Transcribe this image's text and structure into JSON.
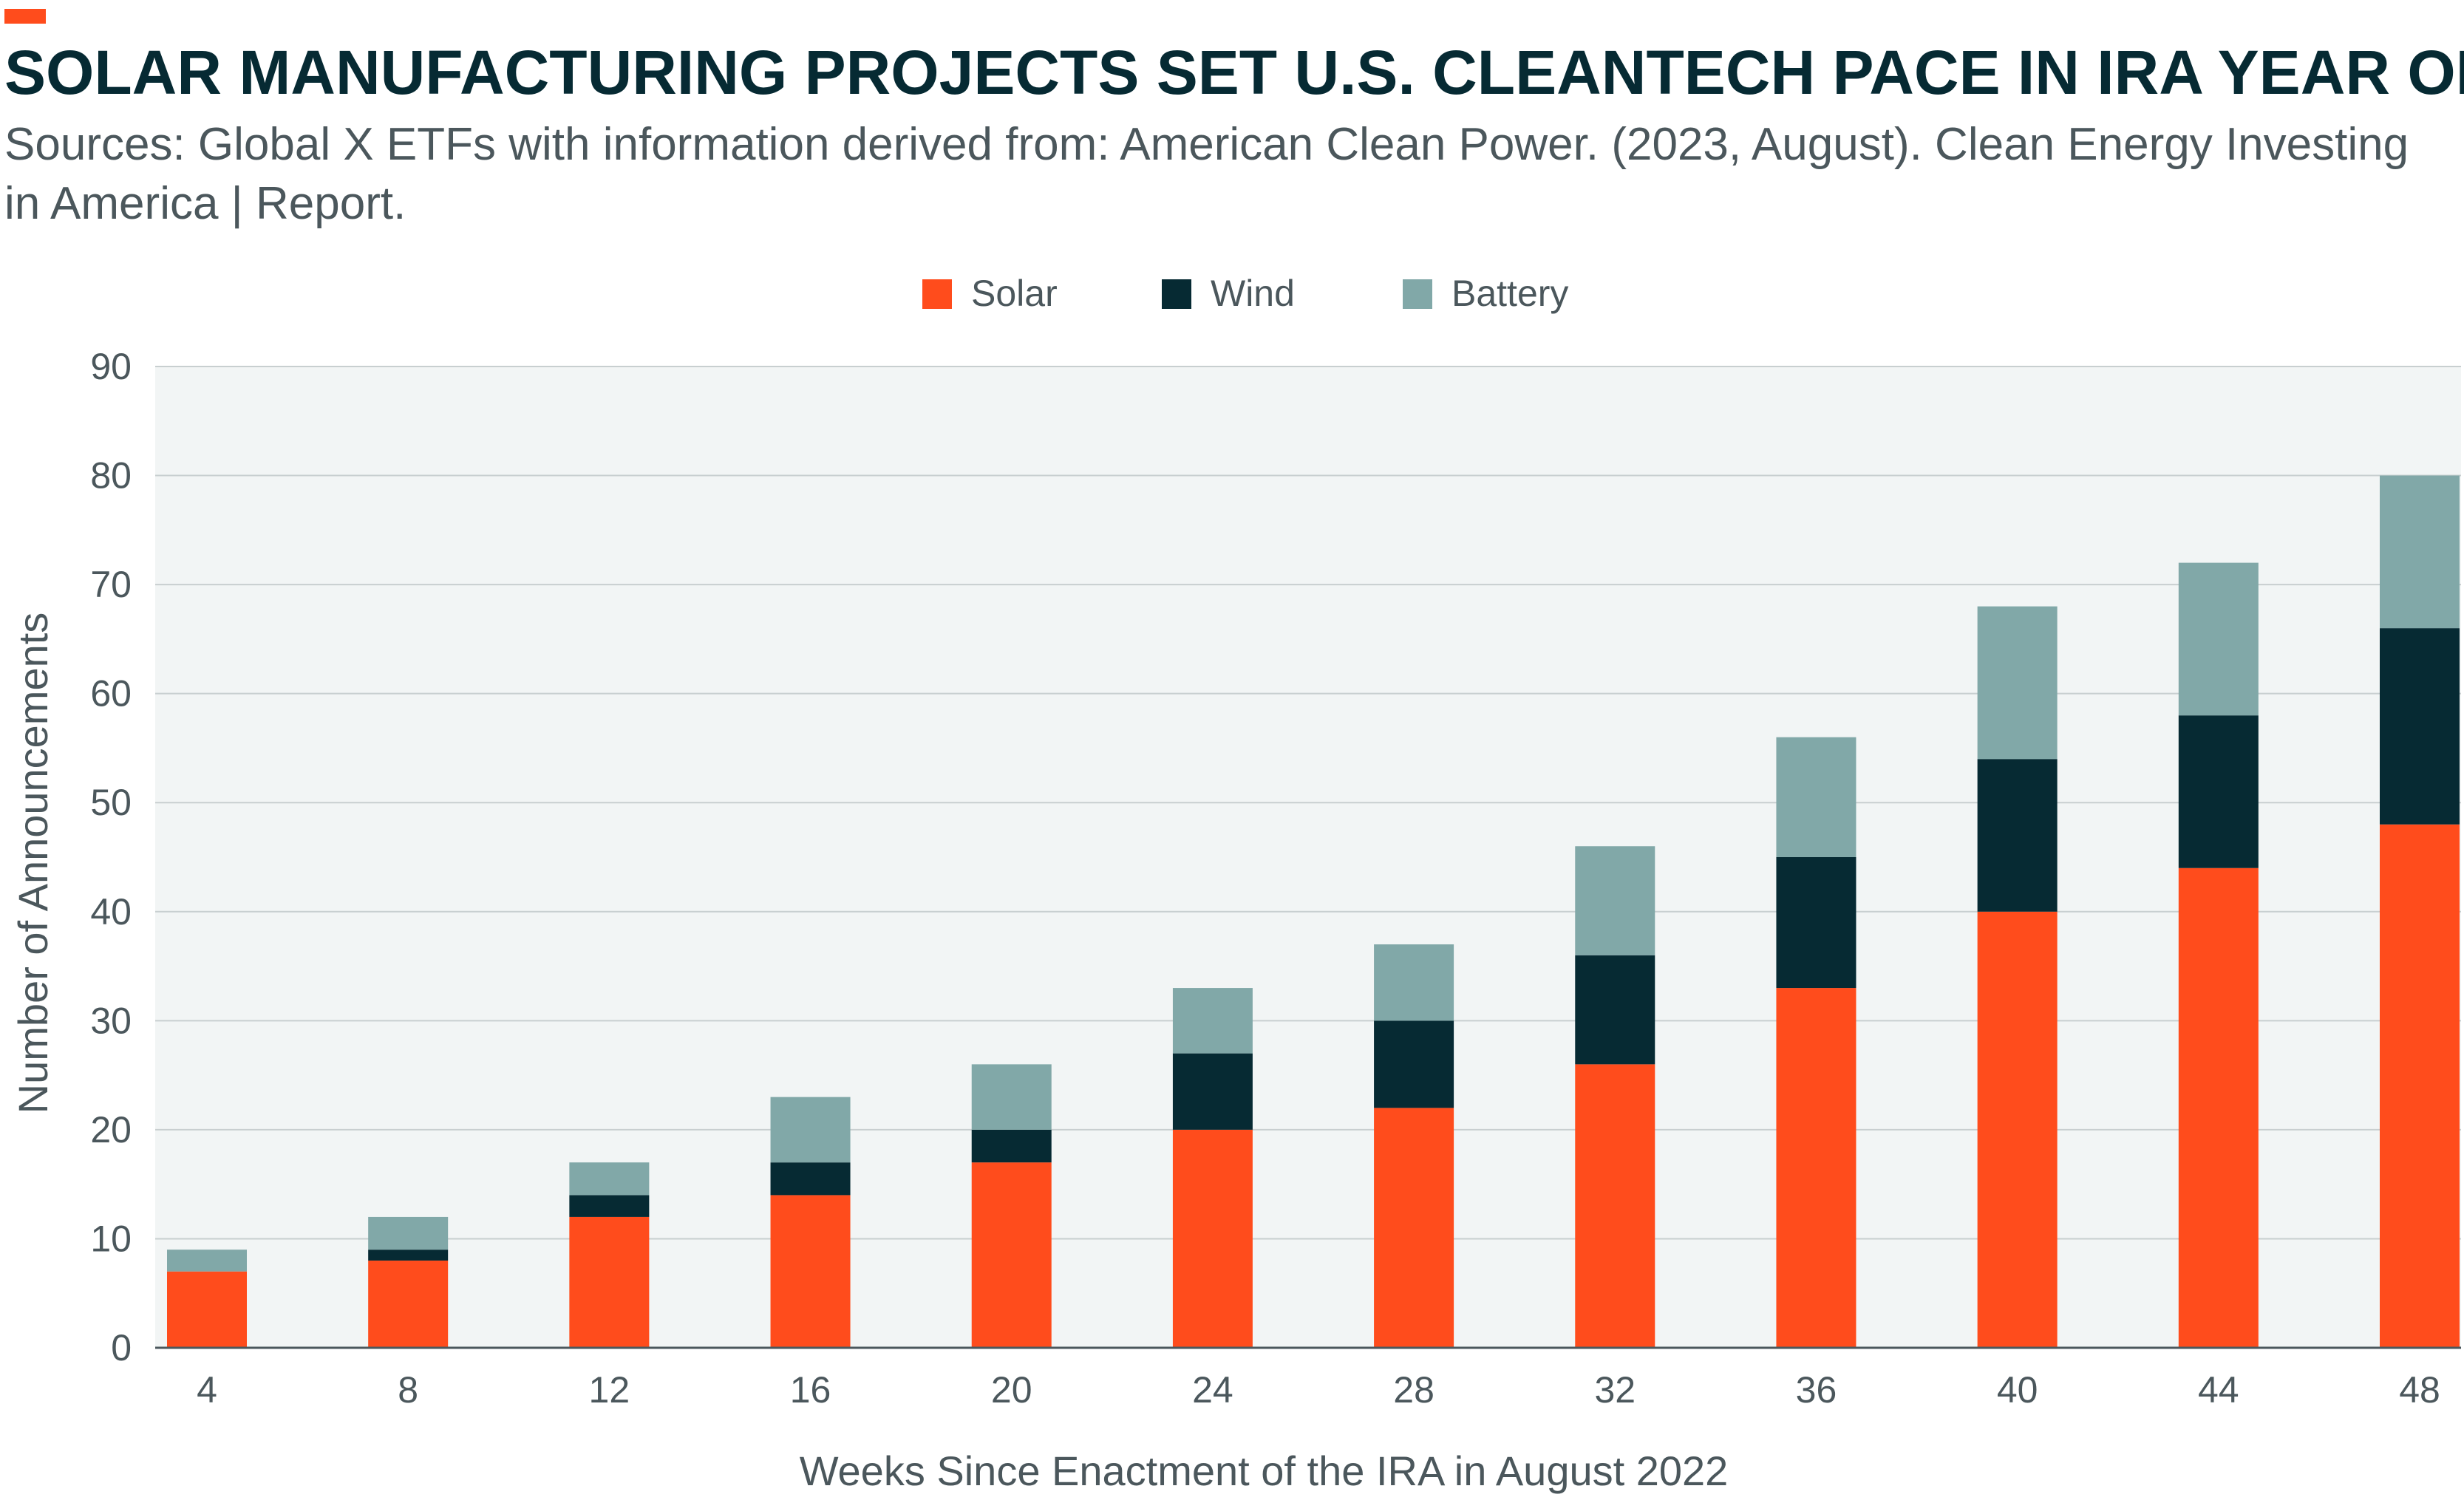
{
  "header": {
    "title": "SOLAR MANUFACTURING PROJECTS SET U.S. CLEANTECH PACE IN IRA YEAR ONE",
    "subtitle_line1": "Sources: Global X ETFs with information derived from: American Clean Power. (2023, August). Clean Energy Investing",
    "subtitle_line2": "in America | Report.",
    "accent_color": "#ff4c1c"
  },
  "chart_data": {
    "type": "bar",
    "stacked": true,
    "title": "SOLAR MANUFACTURING PROJECTS SET U.S. CLEANTECH PACE IN IRA YEAR ONE",
    "xlabel": "Weeks Since Enactment of the IRA in August 2022",
    "ylabel": "Number of Announcements",
    "ylim": [
      0,
      90
    ],
    "yticks": [
      0,
      10,
      20,
      30,
      40,
      50,
      60,
      70,
      80,
      90
    ],
    "grid": true,
    "legend_position": "top-center",
    "categories": [
      "4",
      "8",
      "12",
      "16",
      "20",
      "24",
      "28",
      "32",
      "36",
      "40",
      "44",
      "48"
    ],
    "series": [
      {
        "name": "Solar",
        "color": "#ff4c1c",
        "values": [
          7,
          8,
          12,
          14,
          17,
          20,
          22,
          26,
          33,
          40,
          44,
          48
        ]
      },
      {
        "name": "Wind",
        "color": "#062a33",
        "values": [
          0,
          1,
          2,
          3,
          3,
          7,
          8,
          10,
          12,
          14,
          14,
          18
        ]
      },
      {
        "name": "Battery",
        "color": "#81a8a8",
        "values": [
          2,
          3,
          3,
          6,
          6,
          6,
          7,
          10,
          11,
          14,
          14,
          14
        ]
      }
    ]
  }
}
